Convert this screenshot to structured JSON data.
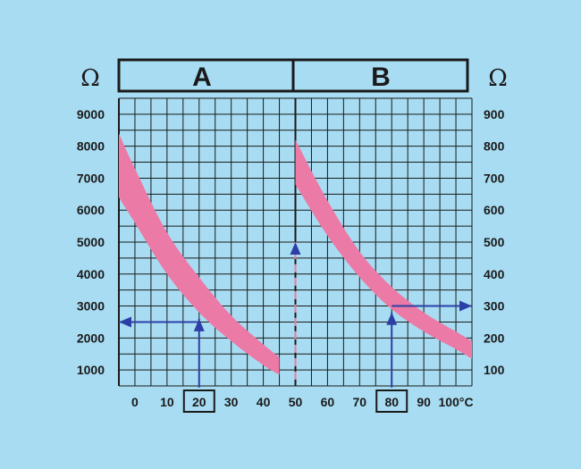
{
  "colors": {
    "background": "#a8dcf2",
    "grid": "#1a1a1a",
    "band": "#ec7aa6",
    "arrow": "#2b3fa6",
    "text": "#1a1a1a"
  },
  "chart_data": {
    "type": "line",
    "header": {
      "left": "A",
      "right": "B"
    },
    "y_unit_left": "Ω",
    "y_unit_right": "Ω",
    "x_ticks": [
      "0",
      "10",
      "20",
      "30",
      "40",
      "50",
      "60",
      "70",
      "80",
      "90",
      "100°C"
    ],
    "y_ticks_left": [
      "9000",
      "8000",
      "7000",
      "6000",
      "5000",
      "4000",
      "3000",
      "2000",
      "1000"
    ],
    "y_ticks_right": [
      "900",
      "800",
      "700",
      "600",
      "500",
      "400",
      "300",
      "200",
      "100"
    ],
    "boxed_ticks": [
      "20",
      "80"
    ],
    "grid": true,
    "xlim": [
      -5,
      105
    ],
    "ylim_left": [
      500,
      9500
    ],
    "ylim_right": [
      50,
      950
    ],
    "series": [
      {
        "panel": "A",
        "axis": "left",
        "band": true,
        "x": [
          -5,
          0,
          10,
          20,
          30,
          40,
          45
        ],
        "y_upper": [
          8400,
          7300,
          5300,
          3900,
          2700,
          1800,
          1400
        ],
        "y_lower": [
          6400,
          5600,
          4000,
          2800,
          1900,
          1150,
          850
        ]
      },
      {
        "panel": "B",
        "axis": "right",
        "band": true,
        "x": [
          50,
          60,
          70,
          80,
          90,
          100,
          105
        ],
        "y_upper": [
          820,
          630,
          470,
          360,
          280,
          220,
          190
        ],
        "y_lower": [
          680,
          520,
          390,
          290,
          220,
          165,
          135
        ]
      }
    ],
    "annotations": [
      {
        "kind": "arrow",
        "from": [
          20,
          450
        ],
        "to": [
          20,
          2600
        ],
        "axis": "left"
      },
      {
        "kind": "arrow",
        "from": [
          20,
          2500
        ],
        "to": [
          -5,
          2500
        ],
        "axis": "left"
      },
      {
        "kind": "dashed-arrow",
        "from": [
          50,
          700
        ],
        "to": [
          50,
          5000
        ],
        "axis": "left"
      },
      {
        "kind": "arrow",
        "from": [
          80,
          45
        ],
        "to": [
          80,
          280
        ],
        "axis": "right"
      },
      {
        "kind": "arrow",
        "from": [
          80,
          300
        ],
        "to": [
          105,
          300
        ],
        "axis": "right"
      }
    ]
  }
}
